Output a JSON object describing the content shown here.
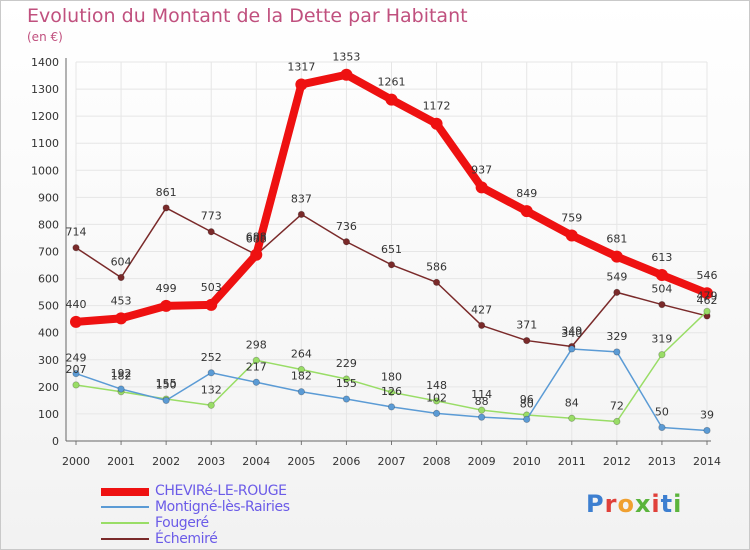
{
  "title": "Evolution du Montant de la Dette par Habitant",
  "subtitle": "(en €)",
  "logo": {
    "text": "Proxiti",
    "colors": [
      "#3d7fd0",
      "#e0403a",
      "#f0a030",
      "#5bb43c",
      "#e0403a",
      "#3d7fd0",
      "#5bb43c"
    ]
  },
  "chart_data": {
    "type": "line",
    "x": [
      2000,
      2001,
      2002,
      2003,
      2004,
      2005,
      2006,
      2007,
      2008,
      2009,
      2010,
      2011,
      2012,
      2013,
      2014
    ],
    "ylim": [
      0,
      1400
    ],
    "yticks": [
      0,
      100,
      200,
      300,
      400,
      500,
      600,
      700,
      800,
      900,
      1000,
      1100,
      1200,
      1300,
      1400
    ],
    "grid": true,
    "legend_position": "bottom-left",
    "series": [
      {
        "name": "CHEVIRé-LE-ROUGE",
        "color": "#ee1111",
        "values": [
          440,
          453,
          499,
          503,
          688,
          1317,
          1353,
          1261,
          1172,
          937,
          849,
          759,
          681,
          613,
          546
        ],
        "labels": [
          "440",
          "453",
          "499",
          "503",
          "688",
          "1317",
          "1353",
          "1261",
          "1172",
          "937",
          "849",
          "759",
          "681",
          "613",
          "546"
        ]
      },
      {
        "name": "Montigné-lès-Rairies",
        "color": "#5b9bd5",
        "values": [
          249,
          192,
          150,
          252,
          217,
          182,
          155,
          126,
          102,
          88,
          80,
          340,
          329,
          50,
          39
        ],
        "labels": [
          "249",
          "192",
          "150",
          "252",
          "217",
          "182",
          "155",
          "126",
          "102",
          "88",
          "80",
          "340",
          "329",
          "50",
          "39"
        ]
      },
      {
        "name": "Fougeré",
        "color": "#99dd66",
        "values": [
          207,
          182,
          155,
          132,
          298,
          264,
          229,
          180,
          148,
          114,
          96,
          84,
          72,
          319,
          479
        ],
        "labels": [
          "207",
          "182",
          "155",
          "132",
          "298",
          "264",
          "229",
          "180",
          "148",
          "114",
          "96",
          "84",
          "72",
          "319",
          "479"
        ]
      },
      {
        "name": "Échemiré",
        "color": "#7a2a2a",
        "values": [
          714,
          604,
          861,
          773,
          688,
          837,
          736,
          651,
          586,
          427,
          371,
          349,
          549,
          504,
          462
        ],
        "labels": [
          "714",
          "604",
          "861",
          "773",
          "688",
          "837",
          "736",
          "651",
          "586",
          "427",
          "371",
          "349",
          "549",
          "504",
          "462"
        ]
      }
    ]
  }
}
